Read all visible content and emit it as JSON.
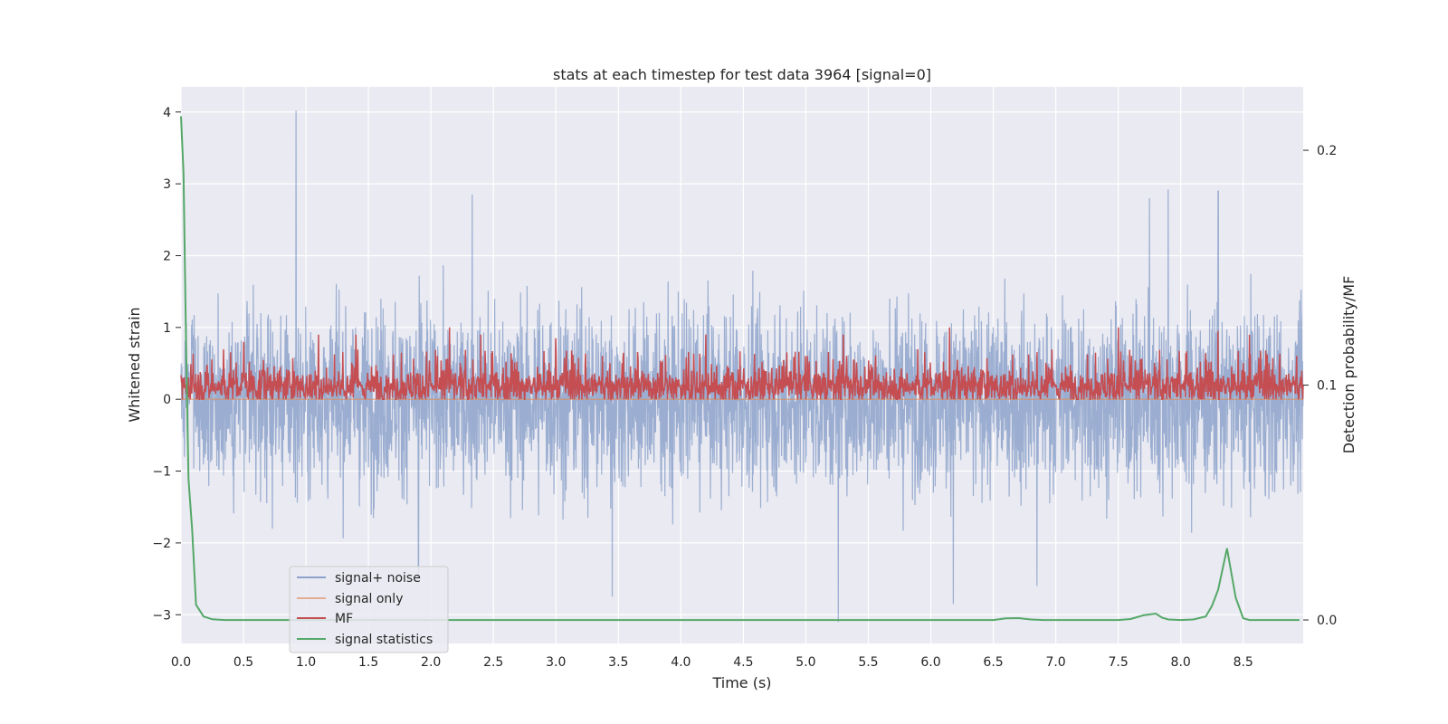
{
  "chart_data": {
    "type": "line",
    "title": "stats at each timestep for test data 3964 [signal=0]",
    "xlabel": "Time (s)",
    "ylabel": "Whitened strain",
    "y2label": "Detection probability/MF",
    "xlim": [
      0.0,
      8.98
    ],
    "ylim": [
      -3.4,
      4.35
    ],
    "y2lim": [
      -0.01,
      0.227
    ],
    "xticks": [
      0.0,
      0.5,
      1.0,
      1.5,
      2.0,
      2.5,
      3.0,
      3.5,
      4.0,
      4.5,
      5.0,
      5.5,
      6.0,
      6.5,
      7.0,
      7.5,
      8.0,
      8.5
    ],
    "xtick_labels": [
      "0.0",
      "0.5",
      "1.0",
      "1.5",
      "2.0",
      "2.5",
      "3.0",
      "3.5",
      "4.0",
      "4.5",
      "5.0",
      "5.5",
      "6.0",
      "6.5",
      "7.0",
      "7.5",
      "8.0",
      "8.5"
    ],
    "yticks": [
      -3,
      -2,
      -1,
      0,
      1,
      2,
      3,
      4
    ],
    "ytick_labels": [
      "−3",
      "−2",
      "−1",
      "0",
      "1",
      "2",
      "3",
      "4"
    ],
    "y2ticks": [
      0.0,
      0.1,
      0.2
    ],
    "y2tick_labels": [
      "0.0",
      "0.1",
      "0.2"
    ],
    "grid": true,
    "legend_position": "lower-left",
    "colors": {
      "background": "#eaeaf2",
      "grid": "#ffffff",
      "signal_noise": "#4c72b0",
      "signal_only": "#dd8452",
      "mf": "#c44e52",
      "stats": "#55a868"
    },
    "series": [
      {
        "name": "signal+ noise",
        "axis": "left",
        "note": "dense whitened noise, approx. uniform band between -1.7 and 1.7 with spikes up to 4.0 at t=0.92 s and down to -3.1 at t=5.26 s",
        "envelope_peaks": [
          [
            0.92,
            4.02
          ],
          [
            2.33,
            2.85
          ],
          [
            7.75,
            2.8
          ],
          [
            7.9,
            2.92
          ],
          [
            8.3,
            2.9
          ],
          [
            5.26,
            -3.1
          ],
          [
            3.45,
            -2.75
          ],
          [
            6.18,
            -2.85
          ],
          [
            6.85,
            -2.6
          ],
          [
            1.9,
            -2.5
          ]
        ]
      },
      {
        "name": "signal only",
        "axis": "left",
        "note": "zero signal (flat at 0)",
        "x": [
          0.0,
          8.98
        ],
        "y": [
          0.0,
          0.0
        ]
      },
      {
        "name": "MF",
        "axis": "left",
        "note": "matched-filter output fluctuating between 0 and ~1",
        "baseline": 0.0,
        "typical_range": [
          0.0,
          0.7
        ],
        "peaks": [
          [
            0.5,
            0.8
          ],
          [
            1.1,
            0.9
          ],
          [
            1.4,
            0.9
          ],
          [
            2.15,
            1.0
          ],
          [
            2.4,
            0.9
          ],
          [
            3.0,
            0.85
          ],
          [
            4.2,
            0.9
          ],
          [
            5.3,
            0.9
          ],
          [
            6.15,
            1.0
          ],
          [
            7.5,
            1.0
          ],
          [
            8.3,
            0.95
          ],
          [
            8.55,
            0.9
          ]
        ]
      },
      {
        "name": "signal statistics",
        "axis": "right",
        "x": [
          0.0,
          0.02,
          0.04,
          0.06,
          0.09,
          0.12,
          0.18,
          0.25,
          0.35,
          0.5,
          1.0,
          2.0,
          3.0,
          4.0,
          5.0,
          6.0,
          6.5,
          6.6,
          6.7,
          6.8,
          6.9,
          7.0,
          7.5,
          7.6,
          7.7,
          7.8,
          7.85,
          7.9,
          8.0,
          8.1,
          8.2,
          8.25,
          8.3,
          8.37,
          8.44,
          8.5,
          8.55,
          8.7,
          8.95
        ],
        "y": [
          0.2145,
          0.19,
          0.12,
          0.06,
          0.038,
          0.0065,
          0.0015,
          0.0003,
          0.0,
          0.0,
          0.0,
          0.0,
          0.0,
          0.0,
          0.0,
          0.0,
          0.0,
          0.0007,
          0.0008,
          0.0002,
          0.0,
          0.0,
          0.0,
          0.0004,
          0.002,
          0.0027,
          0.001,
          0.0002,
          0.0,
          0.0002,
          0.0015,
          0.006,
          0.013,
          0.0305,
          0.0095,
          0.0007,
          0.0,
          0.0,
          0.0
        ]
      }
    ]
  }
}
